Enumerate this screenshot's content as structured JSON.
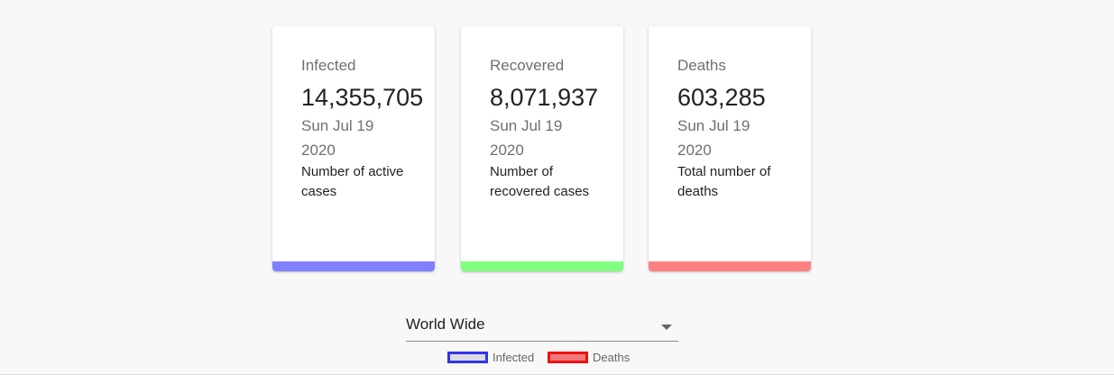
{
  "cards": [
    {
      "title": "Infected",
      "value": "14,355,705",
      "date": "Sun Jul 19 2020",
      "description": "Number of active cases",
      "color": "#8080ff"
    },
    {
      "title": "Recovered",
      "value": "8,071,937",
      "date": "Sun Jul 19 2020",
      "description": "Number of recovered cases",
      "color": "#80ff80"
    },
    {
      "title": "Deaths",
      "value": "603,285",
      "date": "Sun Jul 19 2020",
      "description": "Total number of deaths",
      "color": "#ff8080"
    }
  ],
  "country_select": {
    "selected": "World Wide",
    "icon": "chevron-down-icon"
  },
  "legend": [
    {
      "label": "Infected",
      "fill": "#dcdce0",
      "border": "#3333ee"
    },
    {
      "label": "Deaths",
      "fill": "#f07878",
      "border": "#ee1111"
    }
  ]
}
